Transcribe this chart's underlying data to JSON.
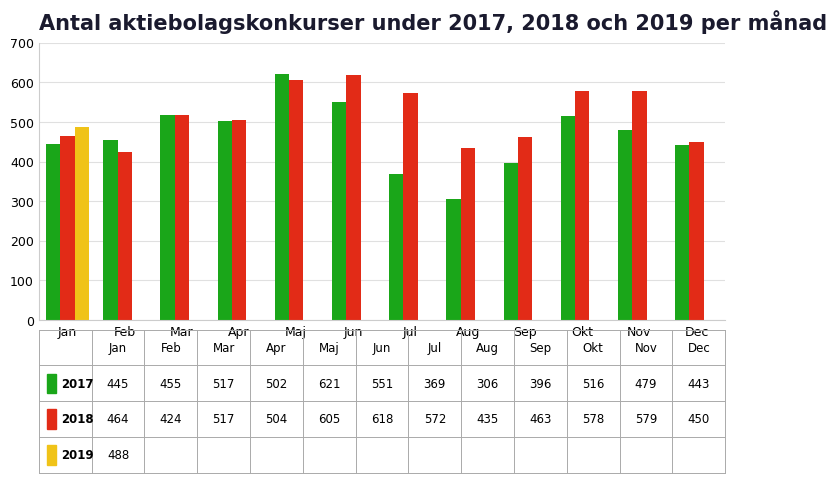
{
  "title": "Antal aktiebolagskonkurser under 2017, 2018 och 2019 per månad",
  "months": [
    "Jan",
    "Feb",
    "Mar",
    "Apr",
    "Maj",
    "Jun",
    "Jul",
    "Aug",
    "Sep",
    "Okt",
    "Nov",
    "Dec"
  ],
  "series": {
    "2017": [
      445,
      455,
      517,
      502,
      621,
      551,
      369,
      306,
      396,
      516,
      479,
      443
    ],
    "2018": [
      464,
      424,
      517,
      504,
      605,
      618,
      572,
      435,
      463,
      578,
      579,
      450
    ],
    "2019": [
      488,
      null,
      null,
      null,
      null,
      null,
      null,
      null,
      null,
      null,
      null,
      null
    ]
  },
  "colors": {
    "2017": "#1aa619",
    "2018": "#e22b17",
    "2019": "#f0c318"
  },
  "ylim": [
    0,
    700
  ],
  "yticks": [
    0,
    100,
    200,
    300,
    400,
    500,
    600,
    700
  ],
  "background_color": "#ffffff",
  "table_border_color": "#aaaaaa",
  "title_fontsize": 15,
  "table_rows": {
    "2017": [
      445,
      455,
      517,
      502,
      621,
      551,
      369,
      306,
      396,
      516,
      479,
      443
    ],
    "2018": [
      464,
      424,
      517,
      504,
      605,
      618,
      572,
      435,
      463,
      578,
      579,
      450
    ],
    "2019": [
      488,
      "",
      "",
      "",
      "",
      "",
      "",
      "",
      "",
      "",
      "",
      ""
    ]
  }
}
